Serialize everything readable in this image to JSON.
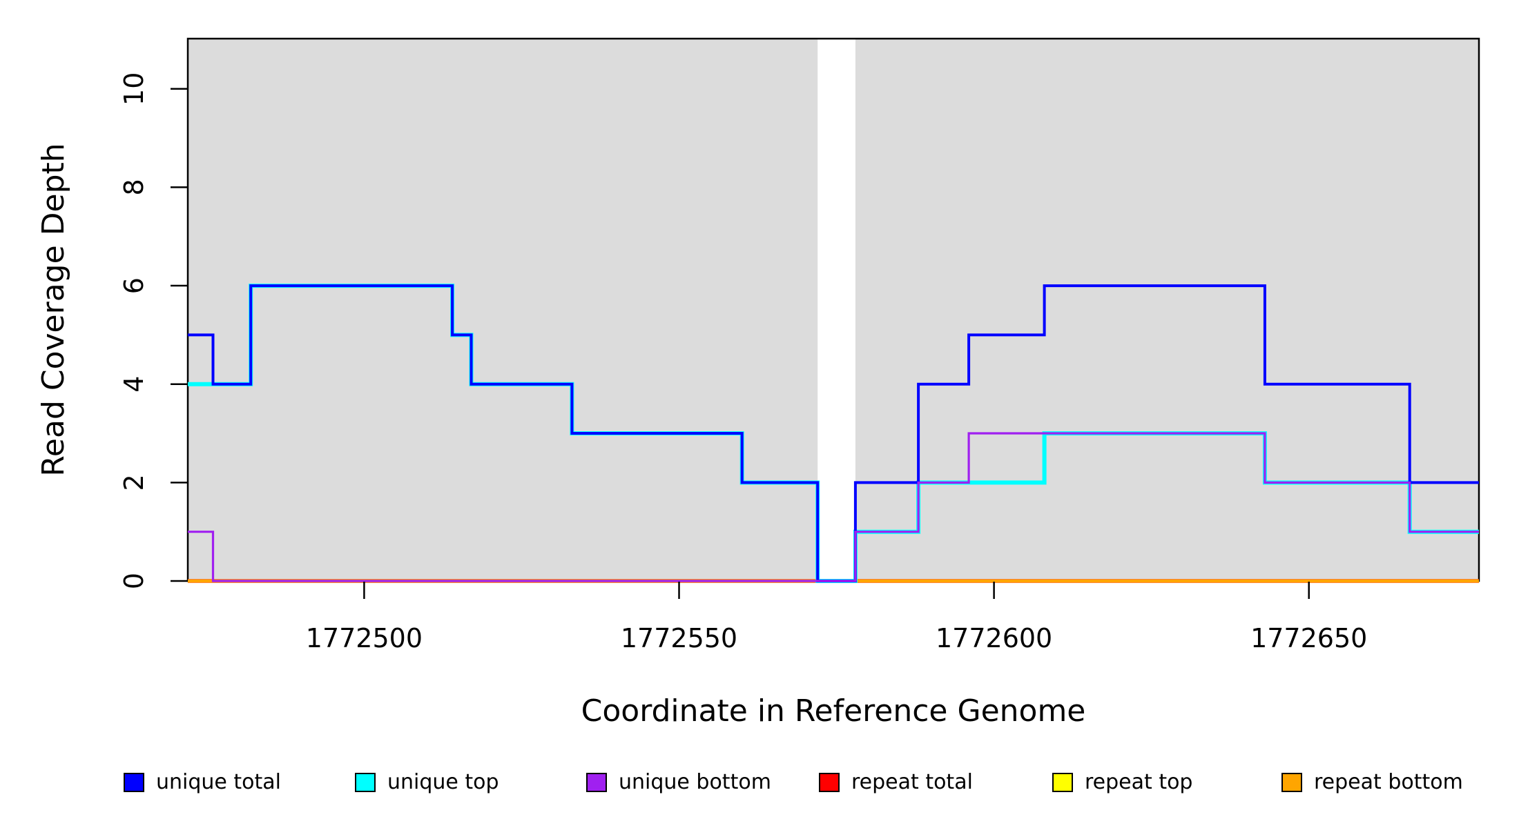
{
  "chart_data": {
    "type": "line",
    "step": true,
    "title": "",
    "xlabel": "Coordinate in Reference Genome",
    "ylabel": "Read Coverage Depth",
    "xlim": [
      1772472,
      1772677
    ],
    "ylim": [
      0,
      11.02
    ],
    "grid": false,
    "legend_position": "bottom",
    "background_color": "#DCDCDC",
    "gap_regions": [
      {
        "from": 1772572,
        "to": 1772578
      }
    ],
    "shaded_regions": [
      {
        "from": 1772472,
        "to": 1772572,
        "color": "#DCDCDC"
      },
      {
        "from": 1772578,
        "to": 1772677,
        "color": "#DCDCDC"
      }
    ],
    "x_ticks": [
      {
        "value": 1772500,
        "label": "1772500"
      },
      {
        "value": 1772550,
        "label": "1772550"
      },
      {
        "value": 1772600,
        "label": "1772600"
      },
      {
        "value": 1772650,
        "label": "1772650"
      }
    ],
    "y_ticks": [
      {
        "value": 0,
        "label": "0"
      },
      {
        "value": 2,
        "label": "2"
      },
      {
        "value": 4,
        "label": "4"
      },
      {
        "value": 6,
        "label": "6"
      },
      {
        "value": 8,
        "label": "8"
      },
      {
        "value": 10,
        "label": "10"
      }
    ],
    "series": [
      {
        "name": "unique total",
        "color": "#0000FF",
        "points": [
          [
            1772472,
            5
          ],
          [
            1772476,
            4
          ],
          [
            1772482,
            6
          ],
          [
            1772514,
            5
          ],
          [
            1772517,
            4
          ],
          [
            1772533,
            3
          ],
          [
            1772560,
            2
          ],
          [
            1772572,
            0
          ],
          [
            1772578,
            2
          ],
          [
            1772588,
            4
          ],
          [
            1772596,
            5
          ],
          [
            1772608,
            6
          ],
          [
            1772643,
            4
          ],
          [
            1772666,
            2
          ]
        ]
      },
      {
        "name": "unique top",
        "color": "#00FFFF",
        "points": [
          [
            1772472,
            4
          ],
          [
            1772482,
            6
          ],
          [
            1772514,
            5
          ],
          [
            1772517,
            4
          ],
          [
            1772533,
            3
          ],
          [
            1772560,
            2
          ],
          [
            1772572,
            0
          ],
          [
            1772578,
            1
          ],
          [
            1772588,
            2
          ],
          [
            1772608,
            3
          ],
          [
            1772643,
            2
          ],
          [
            1772666,
            1
          ]
        ]
      },
      {
        "name": "unique bottom",
        "color": "#A020F0",
        "points": [
          [
            1772472,
            1
          ],
          [
            1772476,
            0
          ],
          [
            1772578,
            1
          ],
          [
            1772588,
            2
          ],
          [
            1772596,
            3
          ],
          [
            1772643,
            2
          ],
          [
            1772666,
            1
          ]
        ]
      },
      {
        "name": "repeat total",
        "color": "#FF0000",
        "points": [
          [
            1772472,
            0
          ]
        ]
      },
      {
        "name": "repeat top",
        "color": "#FFFF00",
        "points": [
          [
            1772472,
            0
          ]
        ]
      },
      {
        "name": "repeat bottom",
        "color": "#FFA500",
        "points": [
          [
            1772472,
            0
          ]
        ]
      }
    ]
  },
  "legend": {
    "items": [
      {
        "label": "unique total",
        "color": "#0000FF"
      },
      {
        "label": "unique top",
        "color": "#00FFFF"
      },
      {
        "label": "unique bottom",
        "color": "#A020F0"
      },
      {
        "label": "repeat total",
        "color": "#FF0000"
      },
      {
        "label": "repeat top",
        "color": "#FFFF00"
      },
      {
        "label": "repeat bottom",
        "color": "#FFA500"
      }
    ]
  }
}
